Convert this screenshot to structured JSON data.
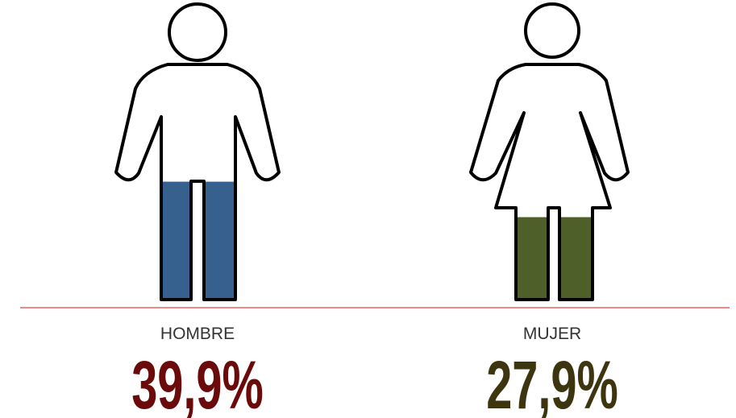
{
  "chart_data": {
    "type": "pictogram",
    "categories": [
      "HOMBRE",
      "MUJER"
    ],
    "values": [
      39.9,
      27.9
    ],
    "value_labels": [
      "39,9%",
      "27,9%"
    ],
    "colors": [
      "#36618f",
      "#4e5f2a"
    ],
    "label_colors": [
      "#6b0a0a",
      "#3d3510"
    ],
    "ylim": [
      0,
      100
    ]
  }
}
